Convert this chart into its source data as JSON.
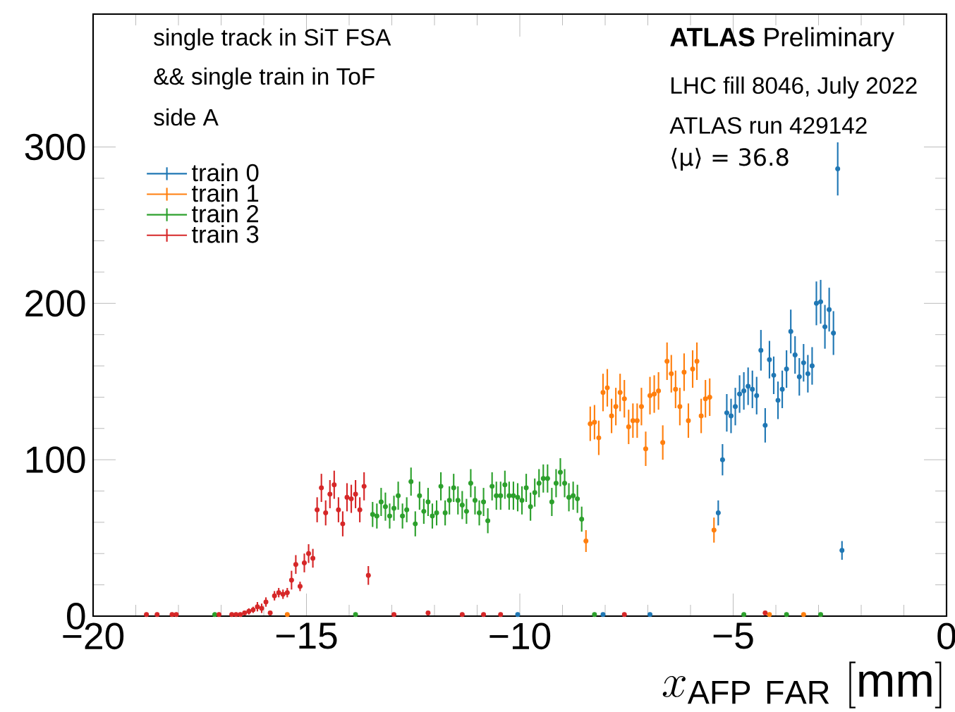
{
  "chart_data": {
    "type": "scatter",
    "xlabel": "x_{\\mathrm{AFP\\ FAR}}\\ [\\mathrm{mm}]",
    "annotations": [
      "single track in SiT FSA",
      "&& single train in ToF",
      "side A",
      "**ATLAS** Preliminary",
      "LHC fill 8046, July 2022",
      "ATLAS run 429142",
      "⟨μ⟩ = 36.8"
    ],
    "xlim": [
      -20,
      0
    ],
    "ylim": [
      0,
      385
    ],
    "xticks": [
      {
        "value": -20,
        "label": "−20"
      },
      {
        "value": -15,
        "label": "−15"
      },
      {
        "value": -10,
        "label": "−10"
      },
      {
        "value": -5,
        "label": "−5"
      },
      {
        "value": 0,
        "label": "0"
      }
    ],
    "yticks": [
      0,
      100,
      200,
      300
    ],
    "legend": "top left",
    "marker": "circle",
    "grid": false,
    "series": [
      {
        "name": "train 0",
        "color": "#1f77b4",
        "x": [
          -10.05,
          -8.05,
          -6.95,
          -5.35,
          -5.25,
          -5.15,
          -5.05,
          -4.95,
          -4.85,
          -4.75,
          -4.65,
          -4.55,
          -4.45,
          -4.35,
          -4.25,
          -4.15,
          -4.05,
          -3.95,
          -3.85,
          -3.75,
          -3.65,
          -3.55,
          -3.45,
          -3.35,
          -3.25,
          -3.15,
          -3.05,
          -2.95,
          -2.85,
          -2.75,
          -2.65,
          -2.55,
          -2.45
        ],
        "values": [
          1,
          1,
          1,
          66,
          100,
          130,
          128,
          134,
          142,
          144,
          147,
          145,
          141,
          170,
          122,
          164,
          154,
          138,
          145,
          158,
          182,
          167,
          153,
          162,
          155,
          160,
          200,
          201,
          185,
          196,
          181,
          286,
          42
        ],
        "errors": [
          null,
          null,
          null,
          8,
          10,
          12,
          11,
          12,
          12,
          12,
          12,
          12,
          12,
          13,
          11,
          12,
          12,
          12,
          12,
          12,
          14,
          12,
          12,
          12,
          12,
          12,
          14,
          14,
          14,
          14,
          14,
          17,
          6
        ],
        "xerrors": [
          0.05,
          0.05,
          0.05,
          0.05,
          0.05,
          0.05,
          0.05,
          0.05,
          0.05,
          0.05,
          0.05,
          0.05,
          0.05,
          0.05,
          0.05,
          0.05,
          0.05,
          0.05,
          0.05,
          0.05,
          0.05,
          0.05,
          0.05,
          0.05,
          0.05,
          0.05,
          0.05,
          0.05,
          0.05,
          0.05,
          0.05,
          0.05,
          0.05
        ]
      },
      {
        "name": "train 1",
        "color": "#ff7f0e",
        "x": [
          -15.45,
          -8.45,
          -8.35,
          -8.25,
          -8.15,
          -8.05,
          -7.95,
          -7.85,
          -7.75,
          -7.65,
          -7.55,
          -7.45,
          -7.35,
          -7.25,
          -7.15,
          -7.05,
          -6.95,
          -6.85,
          -6.75,
          -6.65,
          -6.55,
          -6.45,
          -6.35,
          -6.25,
          -6.15,
          -6.05,
          -5.95,
          -5.85,
          -5.75,
          -5.65,
          -5.55,
          -5.45,
          -4.15,
          -3.35
        ],
        "values": [
          1,
          48,
          123,
          124,
          114,
          143,
          146,
          128,
          134,
          143,
          139,
          121,
          125,
          125,
          134,
          107,
          141,
          142,
          144,
          111,
          163,
          155,
          145,
          134,
          156,
          125,
          158,
          163,
          128,
          139,
          140,
          55,
          1,
          1
        ],
        "errors": [
          null,
          7,
          11,
          11,
          11,
          12,
          12,
          11,
          12,
          12,
          12,
          11,
          11,
          11,
          12,
          11,
          12,
          12,
          12,
          11,
          12,
          12,
          12,
          12,
          12,
          11,
          12,
          12,
          11,
          12,
          12,
          8,
          null,
          null
        ],
        "xerrors": [
          0.05,
          0.05,
          0.05,
          0.05,
          0.05,
          0.05,
          0.05,
          0.05,
          0.05,
          0.05,
          0.05,
          0.05,
          0.05,
          0.05,
          0.05,
          0.05,
          0.05,
          0.05,
          0.05,
          0.05,
          0.05,
          0.05,
          0.05,
          0.05,
          0.05,
          0.05,
          0.05,
          0.05,
          0.05,
          0.05,
          0.05,
          0.05,
          0.05,
          0.05
        ]
      },
      {
        "name": "train 2",
        "color": "#2ca02c",
        "x": [
          -17.15,
          -13.85,
          -13.45,
          -13.35,
          -13.25,
          -13.15,
          -13.05,
          -12.95,
          -12.85,
          -12.75,
          -12.65,
          -12.55,
          -12.45,
          -12.35,
          -12.25,
          -12.15,
          -12.05,
          -11.95,
          -11.85,
          -11.75,
          -11.65,
          -11.55,
          -11.45,
          -11.35,
          -11.25,
          -11.15,
          -11.05,
          -10.95,
          -10.85,
          -10.75,
          -10.65,
          -10.55,
          -10.45,
          -10.35,
          -10.25,
          -10.15,
          -10.05,
          -9.95,
          -9.85,
          -9.75,
          -9.65,
          -9.55,
          -9.45,
          -9.35,
          -9.25,
          -9.15,
          -9.05,
          -8.95,
          -8.85,
          -8.75,
          -8.65,
          -8.55,
          -8.25,
          -4.75,
          -3.75,
          -2.95
        ],
        "values": [
          1,
          1,
          65,
          64,
          73,
          70,
          64,
          69,
          77,
          64,
          68,
          86,
          59,
          77,
          67,
          73,
          64,
          66,
          83,
          66,
          74,
          82,
          74,
          71,
          67,
          85,
          74,
          66,
          73,
          61,
          83,
          77,
          77,
          84,
          77,
          77,
          76,
          74,
          82,
          70,
          79,
          85,
          88,
          88,
          73,
          85,
          92,
          85,
          76,
          77,
          75,
          62,
          1,
          1,
          1,
          1
        ],
        "errors": [
          null,
          null,
          8,
          8,
          9,
          9,
          8,
          8,
          9,
          8,
          8,
          9,
          8,
          9,
          8,
          9,
          8,
          8,
          9,
          8,
          9,
          9,
          9,
          9,
          8,
          9,
          9,
          8,
          9,
          8,
          9,
          9,
          9,
          9,
          9,
          9,
          9,
          9,
          9,
          9,
          9,
          9,
          9,
          9,
          9,
          9,
          9,
          9,
          9,
          9,
          9,
          8,
          null,
          null,
          null,
          null
        ],
        "xerrors": [
          0.05,
          0.05,
          0.05,
          0.05,
          0.05,
          0.05,
          0.05,
          0.05,
          0.05,
          0.05,
          0.05,
          0.05,
          0.05,
          0.05,
          0.05,
          0.05,
          0.05,
          0.05,
          0.05,
          0.05,
          0.05,
          0.05,
          0.05,
          0.05,
          0.05,
          0.05,
          0.05,
          0.05,
          0.05,
          0.05,
          0.05,
          0.05,
          0.05,
          0.05,
          0.05,
          0.05,
          0.05,
          0.05,
          0.05,
          0.05,
          0.05,
          0.05,
          0.05,
          0.05,
          0.05,
          0.05,
          0.05,
          0.05,
          0.05,
          0.05,
          0.05,
          0.05,
          0.05,
          0.05,
          0.05,
          0.05
        ]
      },
      {
        "name": "train 3",
        "color": "#d62728",
        "x": [
          -18.75,
          -18.5,
          -18.15,
          -18.05,
          -17.05,
          -16.75,
          -16.65,
          -16.55,
          -16.45,
          -16.35,
          -16.25,
          -16.15,
          -16.05,
          -15.95,
          -15.85,
          -15.75,
          -15.65,
          -15.55,
          -15.45,
          -15.35,
          -15.25,
          -15.15,
          -15.05,
          -14.95,
          -14.85,
          -14.75,
          -14.65,
          -14.55,
          -14.45,
          -14.35,
          -14.25,
          -14.15,
          -14.05,
          -13.95,
          -13.85,
          -13.75,
          -13.65,
          -13.55,
          -12.95,
          -12.15,
          -11.35,
          -10.85,
          -10.45,
          -7.55,
          -4.25
        ],
        "values": [
          1,
          1,
          1,
          1,
          1,
          1,
          1,
          1,
          2,
          3,
          4,
          6,
          5,
          9,
          2,
          13,
          15,
          14,
          15,
          23,
          33,
          19,
          34,
          40,
          37,
          68,
          82,
          66,
          78,
          84,
          68,
          59,
          76,
          75,
          78,
          68,
          83,
          26,
          1,
          2,
          1,
          1,
          1,
          1,
          2
        ],
        "errors": [
          null,
          null,
          null,
          null,
          null,
          null,
          null,
          null,
          null,
          2,
          2,
          3,
          3,
          3,
          null,
          3,
          3,
          3,
          3,
          6,
          6,
          3,
          6,
          6,
          6,
          8,
          9,
          8,
          9,
          9,
          8,
          8,
          9,
          9,
          9,
          8,
          9,
          6,
          null,
          null,
          null,
          null,
          null,
          null,
          null
        ],
        "xerrors": [
          0.05,
          0.05,
          0.05,
          0.05,
          0.05,
          0.05,
          0.05,
          0.05,
          0.05,
          0.05,
          0.05,
          0.05,
          0.05,
          0.05,
          0.05,
          0.05,
          0.05,
          0.05,
          0.05,
          0.05,
          0.05,
          0.05,
          0.05,
          0.05,
          0.05,
          0.05,
          0.05,
          0.05,
          0.05,
          0.05,
          0.05,
          0.05,
          0.05,
          0.05,
          0.05,
          0.05,
          0.05,
          0.05,
          0.05,
          0.05,
          0.05,
          0.05,
          0.05,
          0.05,
          0.05
        ]
      }
    ]
  }
}
